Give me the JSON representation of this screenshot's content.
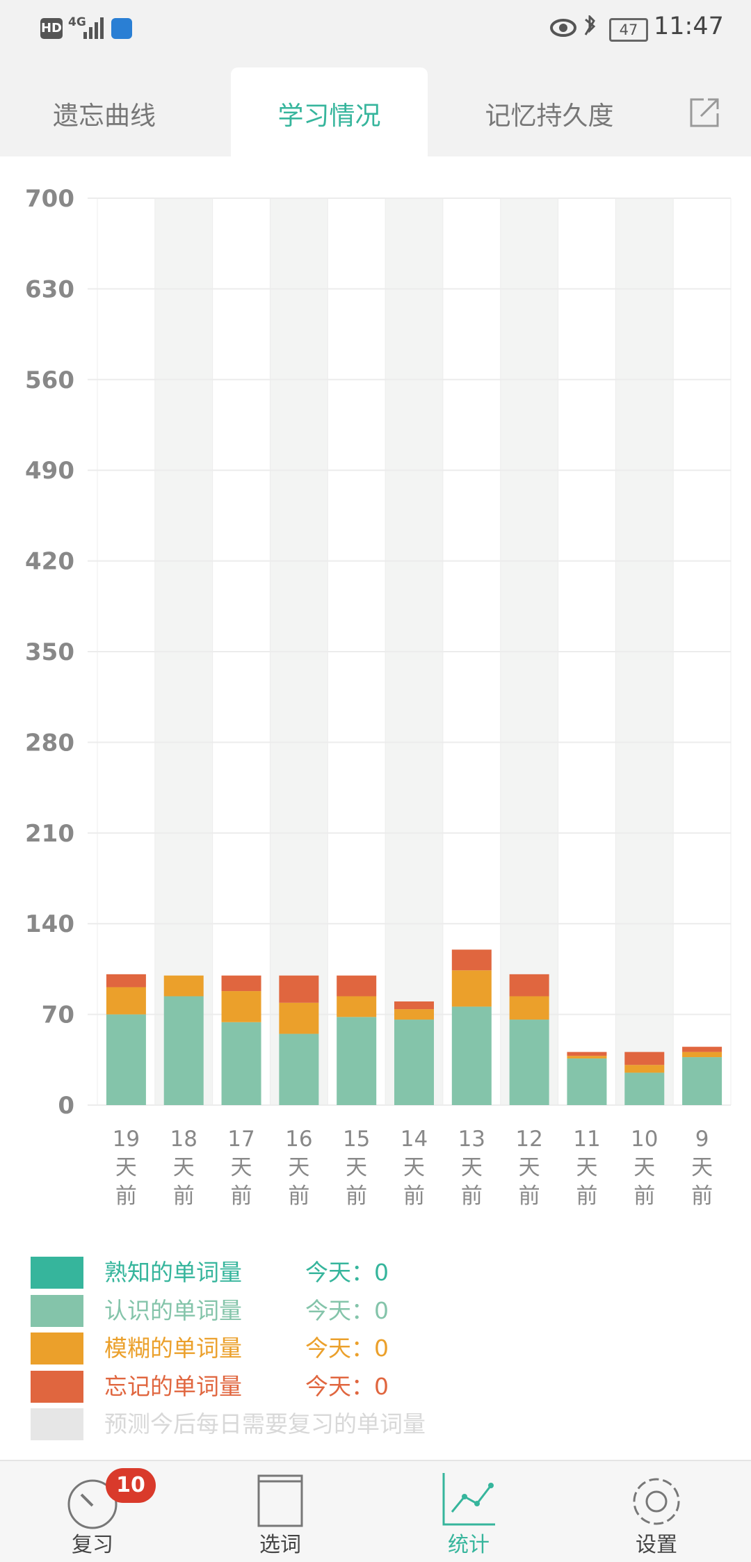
{
  "status_bar": {
    "hd": "HD",
    "network": "4G",
    "battery": "47",
    "time": "11:47"
  },
  "tabs": [
    "遗忘曲线",
    "学习情况",
    "记忆持久度"
  ],
  "chart_data": {
    "type": "bar",
    "stacked": true,
    "categories": [
      "19天前",
      "18天前",
      "17天前",
      "16天前",
      "15天前",
      "14天前",
      "13天前",
      "12天前",
      "11天前",
      "10天前",
      "9天前"
    ],
    "series": [
      {
        "name": "熟知的单词量",
        "color": "#36b59c",
        "values": [
          0,
          0,
          0,
          0,
          0,
          0,
          0,
          0,
          0,
          0,
          0
        ]
      },
      {
        "name": "认识的单词量",
        "color": "#84c4aa",
        "values": [
          70,
          84,
          64,
          55,
          68,
          66,
          76,
          66,
          36,
          25,
          37
        ]
      },
      {
        "name": "模糊的单词量",
        "color": "#eba02b",
        "values": [
          21,
          16,
          24,
          24,
          16,
          8,
          28,
          18,
          2,
          6,
          4
        ]
      },
      {
        "name": "忘记的单词量",
        "color": "#e0663f",
        "values": [
          10,
          0,
          12,
          21,
          16,
          6,
          16,
          17,
          3,
          10,
          4
        ]
      },
      {
        "name": "预测今后每日需要复习的单词量",
        "color": "#e6e6e6",
        "values": [
          null,
          null,
          null,
          null,
          null,
          null,
          null,
          null,
          null,
          null,
          null
        ]
      }
    ],
    "ylim": [
      0,
      700
    ],
    "yticks": [
      0,
      70,
      140,
      210,
      280,
      350,
      420,
      490,
      560,
      630,
      700
    ],
    "grid": true
  },
  "today_counts": {
    "label": "今天：",
    "values": [
      0,
      0,
      0,
      0
    ]
  },
  "nav": [
    {
      "label": "复习",
      "badge": 10
    },
    {
      "label": "选词"
    },
    {
      "label": "统计"
    },
    {
      "label": "设置"
    }
  ]
}
